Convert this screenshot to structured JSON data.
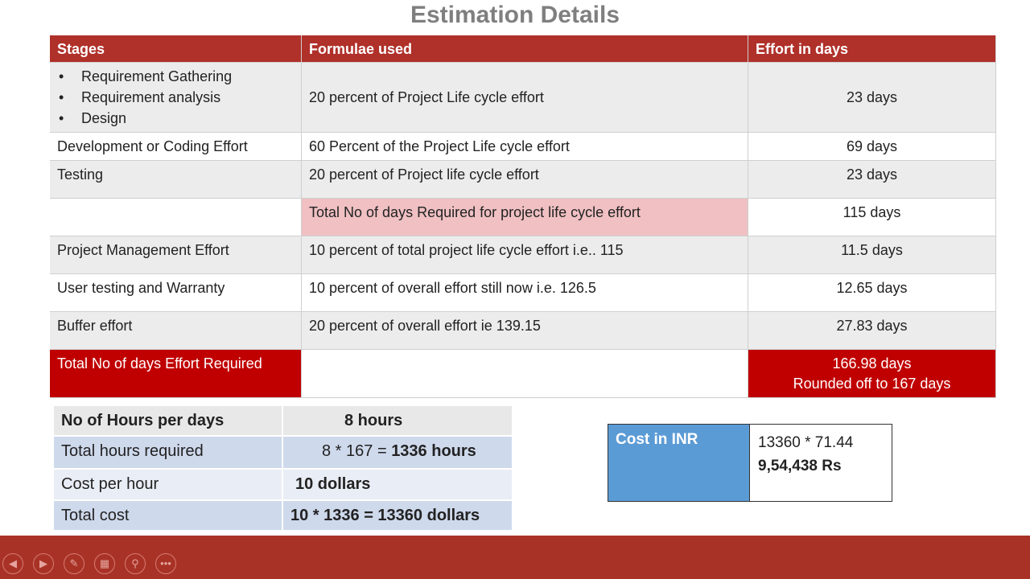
{
  "title": "Estimation Details",
  "table": {
    "headers": [
      "Stages",
      "Formulae used",
      "Effort in days"
    ],
    "rows": [
      {
        "stages": [
          "Requirement Gathering",
          "Requirement analysis",
          "Design"
        ],
        "formula": "20 percent of Project Life cycle effort",
        "effort": "23 days"
      },
      {
        "stage": "Development or Coding Effort",
        "formula": "60 Percent of the Project Life cycle effort",
        "effort": "69 days"
      },
      {
        "stage": "Testing",
        "formula": "20 percent of Project life cycle effort",
        "effort": "23 days"
      },
      {
        "stage": "",
        "formula": "Total No of days Required for project life cycle effort",
        "effort": "115 days"
      },
      {
        "stage": "Project Management Effort",
        "formula": "10 percent of total project life cycle effort i.e.. 115",
        "effort": "11.5 days"
      },
      {
        "stage": "User testing and Warranty",
        "formula": "10 percent of overall effort still now i.e.  126.5",
        "effort": "12.65 days"
      },
      {
        "stage": "Buffer effort",
        "formula": "20 percent of overall effort ie  139.15",
        "effort": "27.83 days"
      }
    ],
    "total": {
      "label": "Total No of days Effort Required",
      "value": "166.98 days",
      "rounded": "Rounded off to 167 days"
    }
  },
  "cost_table": [
    {
      "label": "No of Hours per days",
      "value": "8 hours"
    },
    {
      "label": "Total hours required",
      "value_prefix": "8 * 167 = ",
      "value": "1336 hours"
    },
    {
      "label": "Cost per hour",
      "value": "10 dollars"
    },
    {
      "label": "Total cost",
      "value": "10 * 1336 = 13360 dollars"
    }
  ],
  "inr": {
    "label": "Cost in INR",
    "formula": "13360 * 71.44",
    "value": "9,54,438 Rs"
  },
  "controls": [
    "previous-icon",
    "next-icon",
    "pen-icon",
    "slides-icon",
    "zoom-icon",
    "more-icon"
  ],
  "colors": {
    "header": "#b0302a",
    "total": "#c00000",
    "highlight": "#f0c0c3",
    "inr": "#5b9bd5",
    "bar": "#a93226"
  }
}
